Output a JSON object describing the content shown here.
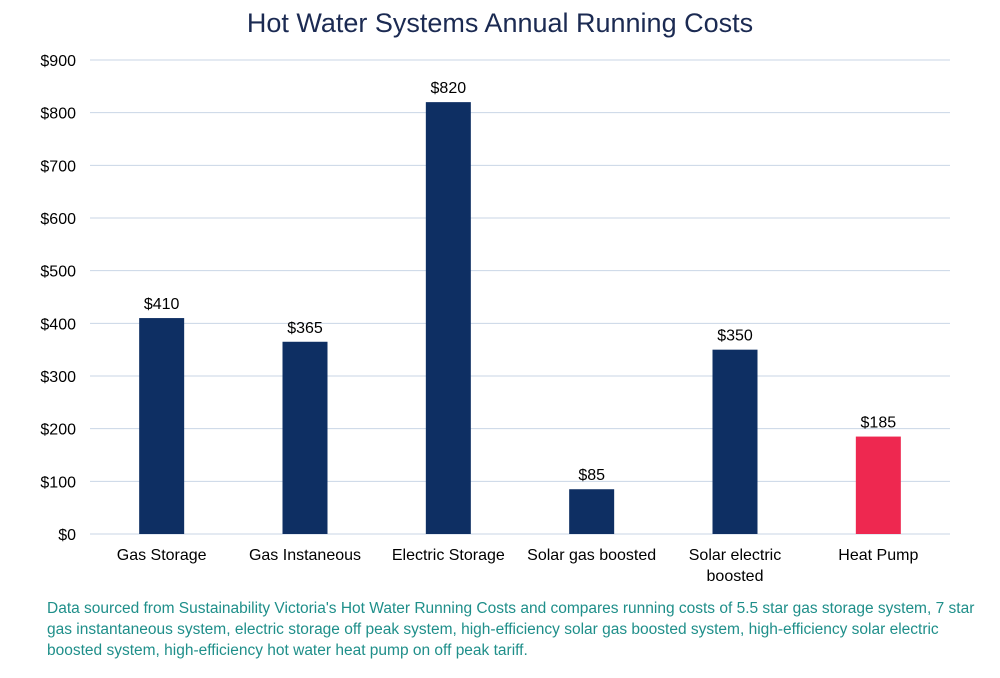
{
  "chart_data": {
    "type": "bar",
    "title": "Hot Water Systems Annual Running Costs",
    "categories": [
      "Gas Storage",
      "Gas Instaneous",
      "Electric Storage",
      "Solar gas boosted",
      "Solar electric boosted",
      "Heat Pump"
    ],
    "category_lines": [
      [
        "Gas Storage"
      ],
      [
        "Gas Instaneous"
      ],
      [
        "Electric Storage"
      ],
      [
        "Solar gas boosted"
      ],
      [
        "Solar electric",
        "boosted"
      ],
      [
        "Heat Pump"
      ]
    ],
    "values": [
      410,
      365,
      820,
      85,
      350,
      185
    ],
    "data_labels": [
      "$410",
      "$365",
      "$820",
      "$85",
      "$350",
      "$185"
    ],
    "bar_colors": [
      "#0e2f63",
      "#0e2f63",
      "#0e2f63",
      "#0e2f63",
      "#0e2f63",
      "#ee2850"
    ],
    "ylim": [
      0,
      900
    ],
    "yticks": [
      0,
      100,
      200,
      300,
      400,
      500,
      600,
      700,
      800,
      900
    ],
    "ytick_labels": [
      "$0",
      "$100",
      "$200",
      "$300",
      "$400",
      "$500",
      "$600",
      "$700",
      "$800",
      "$900"
    ],
    "grid": true,
    "legend": "none"
  },
  "footnote": "Data sourced from Sustainability Victoria's Hot Water Running Costs and compares running costs of 5.5 star gas storage system, 7 star gas instantaneous system, electric storage off peak system, high-efficiency solar gas boosted system, high-efficiency solar electric boosted system, high-efficiency hot water heat pump on off peak tariff.",
  "colors": {
    "title": "#1b2a52",
    "footnote": "#1f8f8a",
    "grid": "#c9d6e6"
  }
}
